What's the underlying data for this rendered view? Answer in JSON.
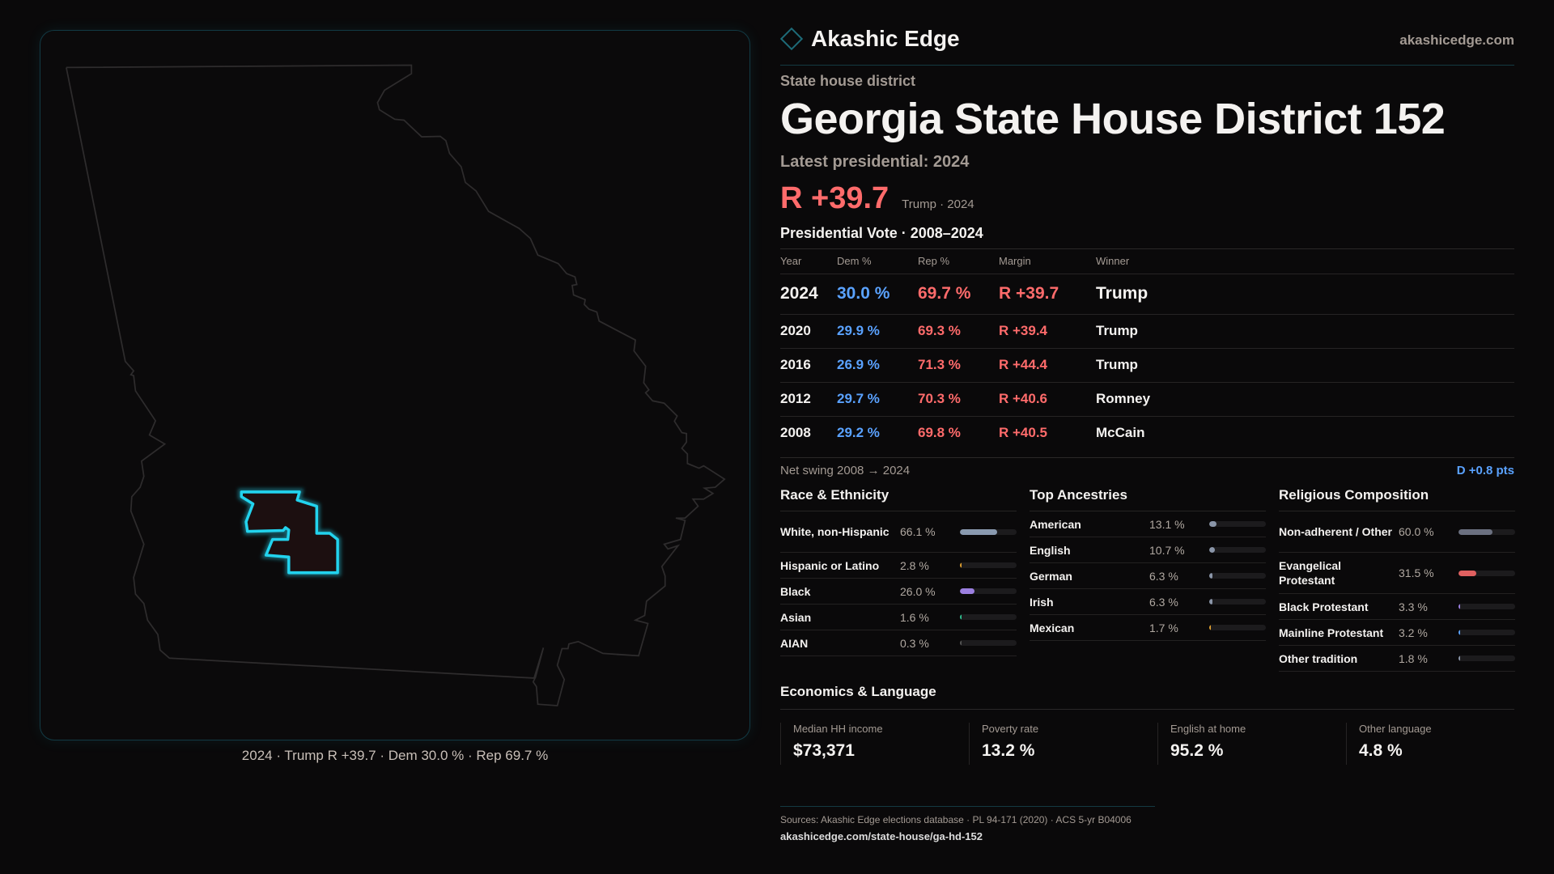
{
  "brand": {
    "name": "Akashic Edge",
    "site": "akashicedge.com"
  },
  "header": {
    "kicker": "State house district",
    "title": "Georgia State House District 152",
    "latest_label": "Latest presidential: 2024",
    "margin": "R +39.7",
    "margin_sub": "Trump · 2024"
  },
  "map": {
    "caption": "2024 · Trump R +39.7 · Dem 30.0 % · Rep 69.7 %",
    "highlight_color": "#22d3ee"
  },
  "votes": {
    "title": "Presidential Vote · 2008–2024",
    "columns": [
      "Year",
      "Dem %",
      "Rep %",
      "Margin",
      "Winner"
    ],
    "rows": [
      [
        "2024",
        "30.0 %",
        "69.7 %",
        "R +39.7",
        "Trump"
      ],
      [
        "2020",
        "29.9 %",
        "69.3 %",
        "R +39.4",
        "Trump"
      ],
      [
        "2016",
        "26.9 %",
        "71.3 %",
        "R +44.4",
        "Trump"
      ],
      [
        "2012",
        "29.7 %",
        "70.3 %",
        "R +40.6",
        "Romney"
      ],
      [
        "2008",
        "29.2 %",
        "69.8 %",
        "R +40.5",
        "McCain"
      ]
    ],
    "swing_label": "Net swing 2008 → 2024",
    "swing_value": "D +0.8 pts"
  },
  "race": {
    "title": "Race & Ethnicity",
    "items": [
      {
        "label": "White, non-Hispanic",
        "value": "66.1 %",
        "pct": 66.1,
        "color": "#8a9ab0"
      },
      {
        "label": "Hispanic or Latino",
        "value": "2.8 %",
        "pct": 2.8,
        "color": "#e0a030"
      },
      {
        "label": "Black",
        "value": "26.0 %",
        "pct": 26.0,
        "color": "#9b7fe0"
      },
      {
        "label": "Asian",
        "value": "1.6 %",
        "pct": 1.6,
        "color": "#30c090"
      },
      {
        "label": "AIAN",
        "value": "0.3 %",
        "pct": 0.3,
        "color": "#555"
      }
    ]
  },
  "ancestry": {
    "title": "Top Ancestries",
    "items": [
      {
        "label": "American",
        "value": "13.1 %",
        "pct": 13.1,
        "color": "#8a95a8"
      },
      {
        "label": "English",
        "value": "10.7 %",
        "pct": 10.7,
        "color": "#8a95a8"
      },
      {
        "label": "German",
        "value": "6.3 %",
        "pct": 6.3,
        "color": "#8a95a8"
      },
      {
        "label": "Irish",
        "value": "6.3 %",
        "pct": 6.3,
        "color": "#8a95a8"
      },
      {
        "label": "Mexican",
        "value": "1.7 %",
        "pct": 1.7,
        "color": "#e0a030"
      }
    ]
  },
  "religion": {
    "title": "Religious Composition",
    "items": [
      {
        "label": "Non-adherent / Other",
        "value": "60.0 %",
        "pct": 60.0,
        "color": "#6b7080"
      },
      {
        "label": "Evangelical Protestant",
        "value": "31.5 %",
        "pct": 31.5,
        "color": "#e06060"
      },
      {
        "label": "Black Protestant",
        "value": "3.3 %",
        "pct": 3.3,
        "color": "#9b7fe0"
      },
      {
        "label": "Mainline Protestant",
        "value": "3.2 %",
        "pct": 3.2,
        "color": "#5aa2ff"
      },
      {
        "label": "Other tradition",
        "value": "1.8 %",
        "pct": 1.8,
        "color": "#8a95a8"
      }
    ]
  },
  "economics": {
    "title": "Economics & Language",
    "cards": [
      {
        "label": "Median HH income",
        "value": "$73,371"
      },
      {
        "label": "Poverty rate",
        "value": "13.2 %"
      },
      {
        "label": "English at home",
        "value": "95.2 %"
      },
      {
        "label": "Other language",
        "value": "4.8 %"
      }
    ]
  },
  "footer": {
    "sources": "Sources: Akashic Edge elections database · PL 94-171 (2020) · ACS 5-yr B04006",
    "url": "akashicedge.com/state-house/ga-hd-152"
  }
}
